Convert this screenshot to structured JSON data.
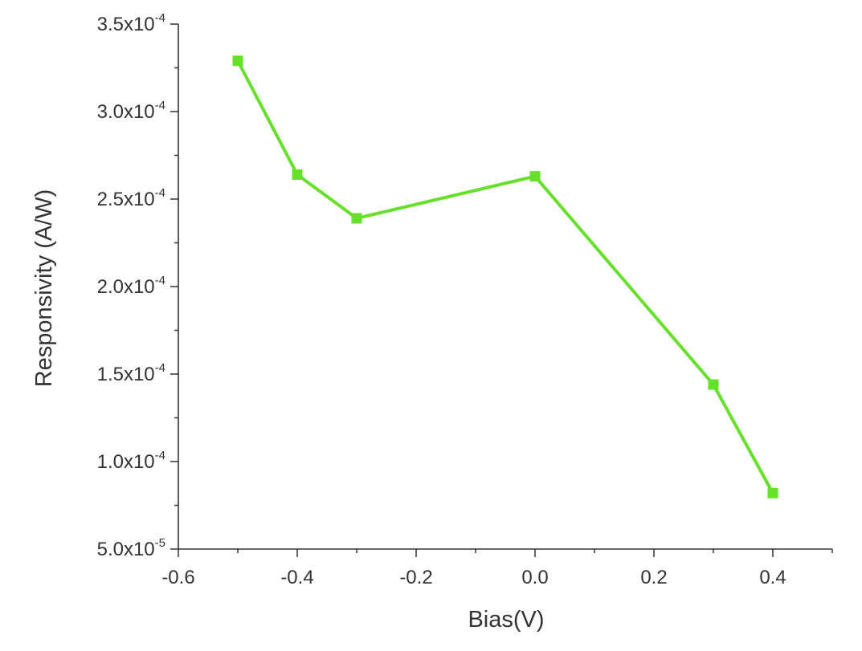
{
  "chart_data": {
    "type": "line",
    "title": "",
    "xlabel": "Bias(V)",
    "ylabel": "Responsivity (A/W)",
    "xlim": [
      -0.6,
      0.5
    ],
    "ylim": [
      5e-05,
      0.00035
    ],
    "x_ticks": [
      -0.6,
      -0.4,
      -0.2,
      0.0,
      0.2,
      0.4
    ],
    "x_tick_labels": [
      "-0.6",
      "-0.4",
      "-0.2",
      "0.0",
      "0.2",
      "0.4"
    ],
    "y_ticks": [
      5e-05,
      0.0001,
      0.00015,
      0.0002,
      0.00025,
      0.0003,
      0.00035
    ],
    "y_tick_labels": [
      {
        "mantissa": "5.0x10",
        "exponent": "-5"
      },
      {
        "mantissa": "1.0x10",
        "exponent": "-4"
      },
      {
        "mantissa": "1.5x10",
        "exponent": "-4"
      },
      {
        "mantissa": "2.0x10",
        "exponent": "-4"
      },
      {
        "mantissa": "2.5x10",
        "exponent": "-4"
      },
      {
        "mantissa": "3.0x10",
        "exponent": "-4"
      },
      {
        "mantissa": "3.5x10",
        "exponent": "-4"
      }
    ],
    "grid": false,
    "series": [
      {
        "color": "#66e02a",
        "marker": "square",
        "x": [
          -0.5,
          -0.4,
          -0.3,
          0.0,
          0.3,
          0.4
        ],
        "y": [
          0.000329,
          0.000264,
          0.000239,
          0.000263,
          0.000144,
          8.2e-05
        ]
      }
    ]
  }
}
